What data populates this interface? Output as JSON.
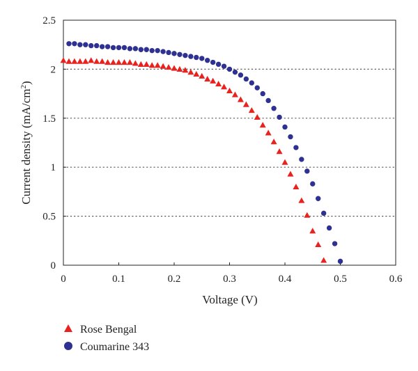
{
  "chart_data": {
    "type": "scatter",
    "xlabel": "Voltage (V)",
    "ylabel": "Current density (mA/cm",
    "ylabel_sup": "2",
    "ylabel_close": ")",
    "xlim": [
      0,
      0.6
    ],
    "ylim": [
      0,
      2.5
    ],
    "xticks": [
      0,
      0.1,
      0.2,
      0.3,
      0.4,
      0.5,
      0.6
    ],
    "xtick_labels": [
      "0",
      "0.1",
      "0.2",
      "0.3",
      "0.4",
      "0.5",
      "0.6"
    ],
    "yticks": [
      0,
      0.5,
      1,
      1.5,
      2,
      2.5
    ],
    "ytick_labels": [
      "0",
      "0.5",
      "1",
      "1.5",
      "2",
      "2.5"
    ],
    "grid": "horizontal-dotted",
    "legend_position": "bottom-left",
    "series": [
      {
        "name": "Rose Bengal",
        "marker": "triangle",
        "color": "#e8231f",
        "x": [
          0.0,
          0.01,
          0.02,
          0.03,
          0.04,
          0.05,
          0.06,
          0.07,
          0.08,
          0.09,
          0.1,
          0.11,
          0.12,
          0.13,
          0.14,
          0.15,
          0.16,
          0.17,
          0.18,
          0.19,
          0.2,
          0.21,
          0.22,
          0.23,
          0.24,
          0.25,
          0.26,
          0.27,
          0.28,
          0.29,
          0.3,
          0.31,
          0.32,
          0.33,
          0.34,
          0.35,
          0.36,
          0.37,
          0.38,
          0.39,
          0.4,
          0.41,
          0.42,
          0.43,
          0.44,
          0.45,
          0.46,
          0.47
        ],
        "y": [
          2.09,
          2.08,
          2.08,
          2.08,
          2.08,
          2.09,
          2.08,
          2.08,
          2.07,
          2.07,
          2.07,
          2.07,
          2.07,
          2.06,
          2.05,
          2.05,
          2.04,
          2.04,
          2.03,
          2.02,
          2.01,
          2.0,
          1.99,
          1.97,
          1.95,
          1.93,
          1.9,
          1.88,
          1.85,
          1.82,
          1.78,
          1.74,
          1.69,
          1.64,
          1.58,
          1.51,
          1.43,
          1.35,
          1.26,
          1.16,
          1.05,
          0.93,
          0.8,
          0.66,
          0.51,
          0.35,
          0.21,
          0.05
        ]
      },
      {
        "name": "Coumarine 343",
        "marker": "circle",
        "color": "#2e3192",
        "x": [
          0.01,
          0.02,
          0.03,
          0.04,
          0.05,
          0.06,
          0.07,
          0.08,
          0.09,
          0.1,
          0.11,
          0.12,
          0.13,
          0.14,
          0.15,
          0.16,
          0.17,
          0.18,
          0.19,
          0.2,
          0.21,
          0.22,
          0.23,
          0.24,
          0.25,
          0.26,
          0.27,
          0.28,
          0.29,
          0.3,
          0.31,
          0.32,
          0.33,
          0.34,
          0.35,
          0.36,
          0.37,
          0.38,
          0.39,
          0.4,
          0.41,
          0.42,
          0.43,
          0.44,
          0.45,
          0.46,
          0.47,
          0.48,
          0.49,
          0.5
        ],
        "y": [
          2.26,
          2.26,
          2.25,
          2.25,
          2.24,
          2.24,
          2.23,
          2.23,
          2.22,
          2.22,
          2.22,
          2.21,
          2.21,
          2.2,
          2.2,
          2.19,
          2.19,
          2.18,
          2.17,
          2.16,
          2.15,
          2.14,
          2.13,
          2.12,
          2.11,
          2.09,
          2.07,
          2.05,
          2.03,
          2.0,
          1.97,
          1.94,
          1.9,
          1.86,
          1.81,
          1.75,
          1.68,
          1.6,
          1.51,
          1.41,
          1.31,
          1.2,
          1.08,
          0.96,
          0.83,
          0.68,
          0.53,
          0.38,
          0.22,
          0.04
        ]
      }
    ]
  }
}
